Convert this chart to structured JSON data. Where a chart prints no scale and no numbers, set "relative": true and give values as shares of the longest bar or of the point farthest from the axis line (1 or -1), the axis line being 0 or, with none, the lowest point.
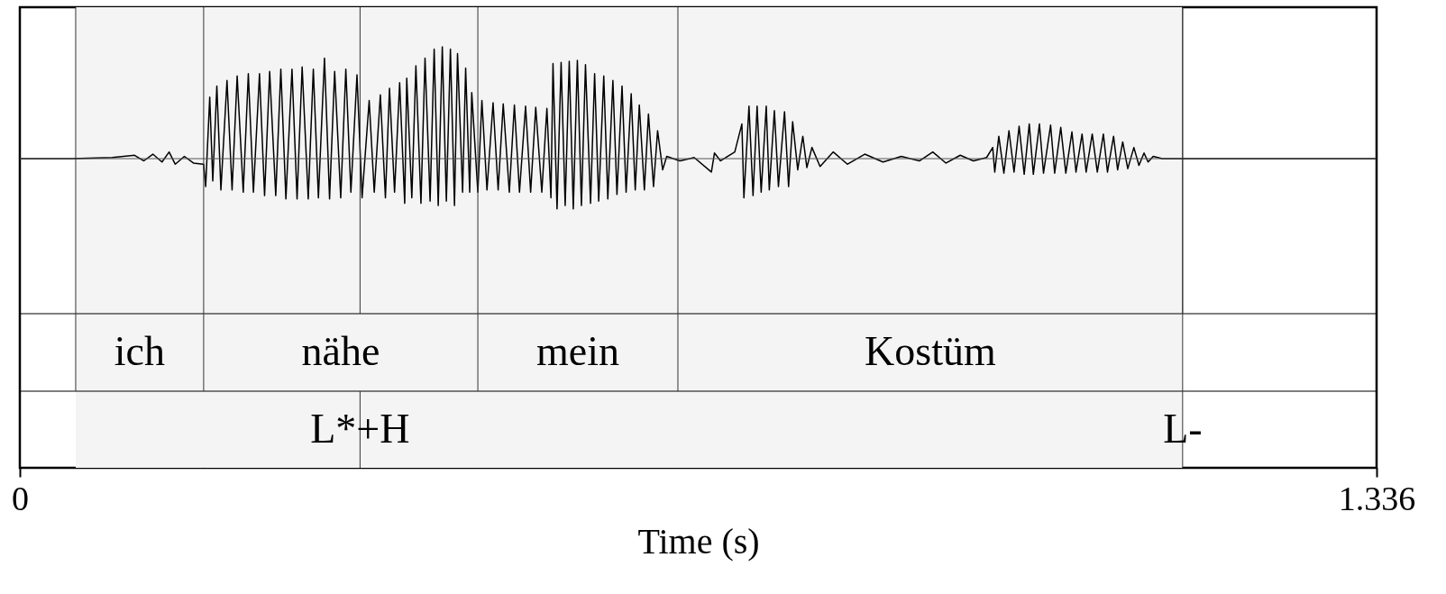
{
  "chart_data": {
    "type": "line",
    "relative": true,
    "xlabel": "Time (s)",
    "xlim": [
      0,
      1.336
    ],
    "xticks": [
      0,
      {
        "value": 1.336,
        "label": "1.336"
      }
    ],
    "grid": false,
    "x": [
      0,
      0.051,
      0.091,
      0.113,
      0.122,
      0.131,
      0.14,
      0.147,
      0.153,
      0.162,
      0.171,
      0.181,
      0.183,
      0.187,
      0.19,
      0.194,
      0.198,
      0.204,
      0.209,
      0.214,
      0.22,
      0.225,
      0.23,
      0.236,
      0.241,
      0.246,
      0.252,
      0.257,
      0.262,
      0.268,
      0.273,
      0.278,
      0.284,
      0.289,
      0.294,
      0.3,
      0.305,
      0.31,
      0.316,
      0.321,
      0.326,
      0.332,
      0.337,
      0.344,
      0.349,
      0.355,
      0.36,
      0.364,
      0.369,
      0.374,
      0.379,
      0.381,
      0.386,
      0.39,
      0.395,
      0.399,
      0.404,
      0.408,
      0.412,
      0.416,
      0.42,
      0.424,
      0.428,
      0.431,
      0.436,
      0.439,
      0.443,
      0.445,
      0.451,
      0.455,
      0.46,
      0.466,
      0.471,
      0.476,
      0.482,
      0.487,
      0.492,
      0.498,
      0.503,
      0.508,
      0.514,
      0.519,
      0.523,
      0.525,
      0.529,
      0.533,
      0.537,
      0.541,
      0.545,
      0.549,
      0.553,
      0.557,
      0.562,
      0.566,
      0.57,
      0.575,
      0.579,
      0.584,
      0.588,
      0.593,
      0.597,
      0.602,
      0.606,
      0.61,
      0.615,
      0.619,
      0.624,
      0.628,
      0.633,
      0.637,
      0.65,
      0.664,
      0.681,
      0.684,
      0.69,
      0.704,
      0.711,
      0.713,
      0.718,
      0.722,
      0.726,
      0.73,
      0.735,
      0.738,
      0.743,
      0.747,
      0.753,
      0.757,
      0.761,
      0.766,
      0.771,
      0.775,
      0.78,
      0.788,
      0.801,
      0.815,
      0.832,
      0.85,
      0.868,
      0.886,
      0.899,
      0.912,
      0.926,
      0.939,
      0.952,
      0.958,
      0.96,
      0.964,
      0.969,
      0.974,
      0.979,
      0.984,
      0.989,
      0.994,
      0.998,
      1.004,
      1.008,
      1.015,
      1.019,
      1.025,
      1.03,
      1.036,
      1.04,
      1.046,
      1.05,
      1.056,
      1.061,
      1.067,
      1.071,
      1.077,
      1.081,
      1.086,
      1.091,
      1.097,
      1.102,
      1.107,
      1.111,
      1.116,
      1.125,
      1.145,
      1.336
    ],
    "series": [
      {
        "color": "#000000",
        "values": [
          0,
          0,
          0.01,
          0.03,
          -0.02,
          0.04,
          -0.03,
          0.06,
          -0.05,
          0.02,
          -0.04,
          -0.05,
          -0.25,
          0.55,
          -0.2,
          0.65,
          -0.28,
          0.7,
          -0.28,
          0.74,
          -0.3,
          0.76,
          -0.3,
          0.76,
          -0.33,
          0.78,
          -0.33,
          0.8,
          -0.36,
          0.8,
          -0.36,
          0.82,
          -0.36,
          0.8,
          -0.35,
          0.9,
          -0.36,
          0.78,
          -0.35,
          0.8,
          -0.3,
          0.75,
          -0.35,
          0.52,
          -0.3,
          0.57,
          -0.35,
          0.63,
          -0.3,
          0.68,
          -0.4,
          0.72,
          -0.35,
          0.83,
          -0.4,
          0.9,
          -0.38,
          0.98,
          -0.42,
          1.0,
          -0.38,
          0.98,
          -0.42,
          0.94,
          -0.3,
          0.81,
          -0.3,
          0.59,
          -0.3,
          0.52,
          -0.28,
          0.5,
          -0.28,
          0.49,
          -0.3,
          0.48,
          -0.3,
          0.47,
          -0.3,
          0.46,
          -0.3,
          0.45,
          -0.35,
          0.85,
          -0.45,
          0.86,
          -0.42,
          0.87,
          -0.45,
          0.88,
          -0.42,
          0.84,
          -0.4,
          0.76,
          -0.38,
          0.74,
          -0.36,
          0.7,
          -0.32,
          0.65,
          -0.3,
          0.58,
          -0.28,
          0.48,
          -0.28,
          0.4,
          -0.25,
          0.25,
          -0.1,
          0.02,
          -0.02,
          0.01,
          -0.12,
          0.05,
          -0.02,
          0.06,
          0.31,
          -0.35,
          0.47,
          -0.33,
          0.47,
          -0.3,
          0.47,
          -0.28,
          0.43,
          -0.25,
          0.42,
          -0.25,
          0.33,
          -0.1,
          0.2,
          -0.08,
          0.1,
          -0.07,
          0.06,
          -0.05,
          0.04,
          -0.03,
          0.02,
          -0.02,
          0.06,
          -0.04,
          0.03,
          -0.02,
          0.01,
          0.1,
          -0.12,
          0.2,
          -0.13,
          0.25,
          -0.12,
          0.29,
          -0.14,
          0.31,
          -0.14,
          0.31,
          -0.13,
          0.3,
          -0.13,
          0.28,
          -0.13,
          0.24,
          -0.12,
          0.22,
          -0.12,
          0.22,
          -0.12,
          0.22,
          -0.12,
          0.2,
          -0.1,
          0.15,
          -0.09,
          0.1,
          -0.06,
          0.05,
          -0.03,
          0.02,
          0,
          0,
          0
        ]
      }
    ],
    "bands": [
      {
        "axis": "x",
        "from": 0.055,
        "to": 0.181,
        "label": "ich",
        "color": "#f4f4f4"
      },
      {
        "axis": "x",
        "from": 0.181,
        "to": 0.451,
        "label": "nähe",
        "color": "#f4f4f4"
      },
      {
        "axis": "x",
        "from": 0.451,
        "to": 0.648,
        "label": "mein",
        "color": "#f4f4f4"
      },
      {
        "axis": "x",
        "from": 0.648,
        "to": 1.145,
        "label": "Kostüm",
        "color": "#f4f4f4"
      }
    ],
    "ref_lines": [
      {
        "axis": "x",
        "value": 0.335,
        "label": "L*+H"
      },
      {
        "axis": "x",
        "value": 1.145,
        "label": "L-"
      }
    ]
  }
}
